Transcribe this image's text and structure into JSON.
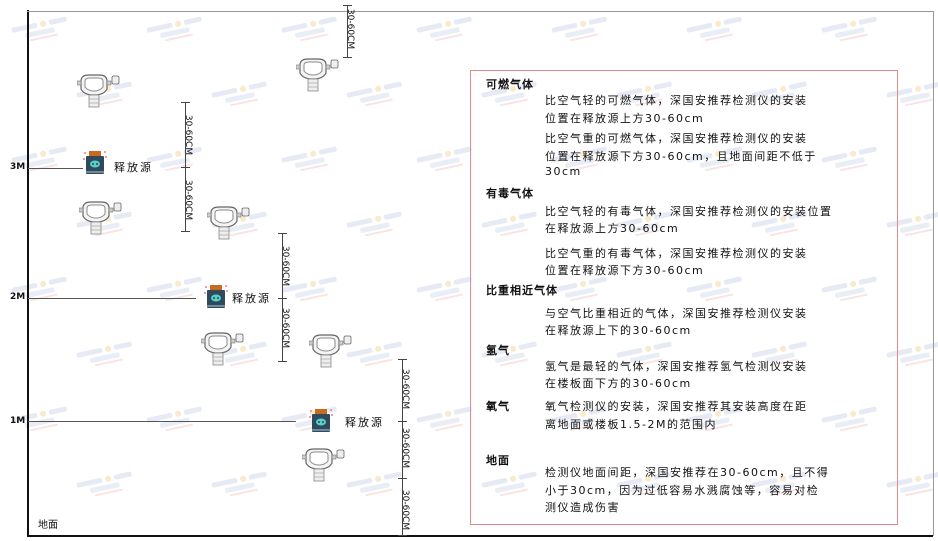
{
  "watermark": {
    "brand": "SINGOAN",
    "cn": "深国安"
  },
  "levels": [
    {
      "label": "3M"
    },
    {
      "label": "2M"
    },
    {
      "label": "1M"
    }
  ],
  "ground_label": "地面",
  "source_label": "释放源",
  "dimension_label": "30-60CM",
  "sections": [
    {
      "title": "可燃气体",
      "lines": [
        "比空气轻的可燃气体，深国安推荐检测仪的安装",
        "位置在释放源上方30-60cm",
        "比空气重的可燃气体，深国安推荐检测仪的安装",
        "位置在释放源下方30-60cm，且地面间距不低于",
        "30cm"
      ]
    },
    {
      "title": "有毒气体",
      "lines": [
        "比空气轻的有毒气体，深国安推荐检测仪的安装位置",
        "在释放源上方30-60cm",
        "比空气重的有毒气体，深国安推荐检测仪的安装",
        "位置在释放源下方30-60cm"
      ]
    },
    {
      "title": "比重相近气体",
      "lines": [
        "与空气比重相近的气体，深国安推荐检测仪安装",
        "在释放源上下的30-60cm"
      ]
    },
    {
      "title": "氢气",
      "lines": [
        "氢气是最轻的气体，深国安推荐氢气检测仪安装",
        "在楼板面下方的30-60cm"
      ]
    },
    {
      "title": "氧气",
      "lines": [
        "氧气检测仪的安装，深国安推荐其安装高度在距",
        "离地面或楼板1.5-2M的范围内"
      ]
    },
    {
      "title": "地面",
      "lines": [
        "检测仪地面间距，深国安推荐在30-60cm，且不得",
        "小于30cm，因为过低容易水溅腐蚀等，容易对检",
        "测仪造成伤害"
      ]
    }
  ],
  "colors": {
    "box_border": "#e58a8a",
    "source_body": "#2f4a5c",
    "source_cap": "#c96a1e",
    "source_face": "#58d0c8"
  }
}
